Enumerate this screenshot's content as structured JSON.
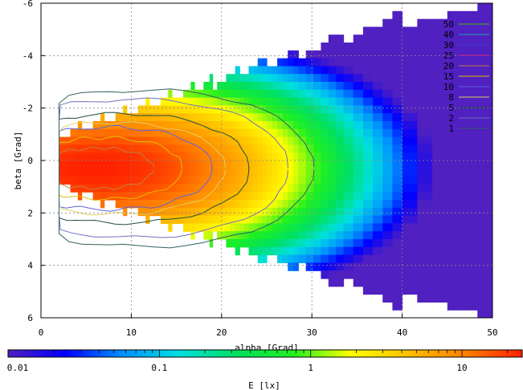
{
  "chart_data": {
    "type": "heatmap",
    "title": "",
    "xlabel": "alpha [Grad]",
    "ylabel": "beta [Grad]",
    "xlim": [
      0,
      50
    ],
    "ylim": [
      6,
      -6
    ],
    "x_ticks": [
      "0",
      "10",
      "20",
      "30",
      "40",
      "50"
    ],
    "y_ticks": [
      "-6",
      "-4",
      "-2",
      "0",
      "2",
      "4",
      "6"
    ],
    "y_tick_values": [
      -6,
      -4,
      -2,
      0,
      2,
      4,
      6
    ],
    "x_tick_values": [
      0,
      10,
      20,
      30,
      40,
      50
    ],
    "grid": true,
    "legend_position": "top-right",
    "contour_levels": [
      {
        "label": "50",
        "value": 50,
        "color": "#40c000"
      },
      {
        "label": "40",
        "value": 40,
        "color": "#20a0a0"
      },
      {
        "label": "30",
        "value": 30,
        "color": "#4040c0"
      },
      {
        "label": "25",
        "value": 25,
        "color": "#d02080"
      },
      {
        "label": "20",
        "value": 20,
        "color": "#c08040"
      },
      {
        "label": "15",
        "value": 15,
        "color": "#e0c000"
      },
      {
        "label": "10",
        "value": 10,
        "color": "#6060e0"
      },
      {
        "label": "8",
        "value": 8,
        "color": "#e0d060"
      },
      {
        "label": "5",
        "value": 5,
        "color": "#205040"
      },
      {
        "label": "2",
        "value": 2,
        "color": "#7070c0"
      },
      {
        "label": "1",
        "value": 1,
        "color": "#306060"
      }
    ],
    "colorbar": {
      "label": "E [lx]",
      "scale": "log",
      "range": [
        0.01,
        25
      ],
      "ticks": [
        "0.01",
        "0.1",
        "1",
        "10"
      ],
      "tick_values": [
        0.01,
        0.1,
        1,
        10
      ],
      "stops": [
        "#5020c0",
        "#0000ff",
        "#0090ff",
        "#00e0e0",
        "#00e060",
        "#20f020",
        "#ffff00",
        "#ffc000",
        "#ff8000",
        "#ff2000"
      ]
    },
    "illuminance_peak": {
      "alpha": 6,
      "beta": 0.3,
      "value": 25
    }
  }
}
